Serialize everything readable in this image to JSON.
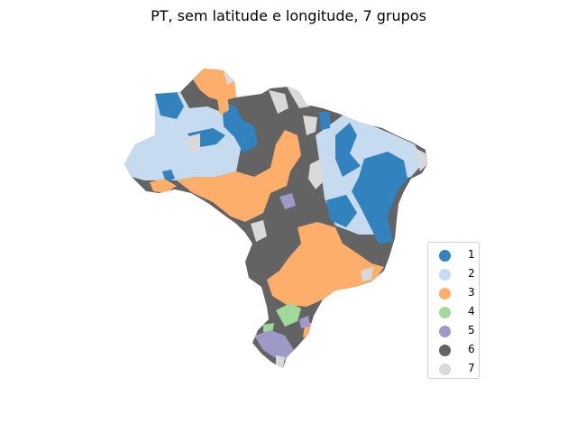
{
  "title": "PT, sem latitude e longitude, 7 grupos",
  "legend": {
    "items": [
      {
        "label": "1",
        "color": "#3182bd"
      },
      {
        "label": "2",
        "color": "#c6dbef"
      },
      {
        "label": "3",
        "color": "#fdae6b"
      },
      {
        "label": "4",
        "color": "#a1d99b"
      },
      {
        "label": "5",
        "color": "#9e9ac8"
      },
      {
        "label": "6",
        "color": "#636363"
      },
      {
        "label": "7",
        "color": "#d9d9d9"
      }
    ]
  }
}
